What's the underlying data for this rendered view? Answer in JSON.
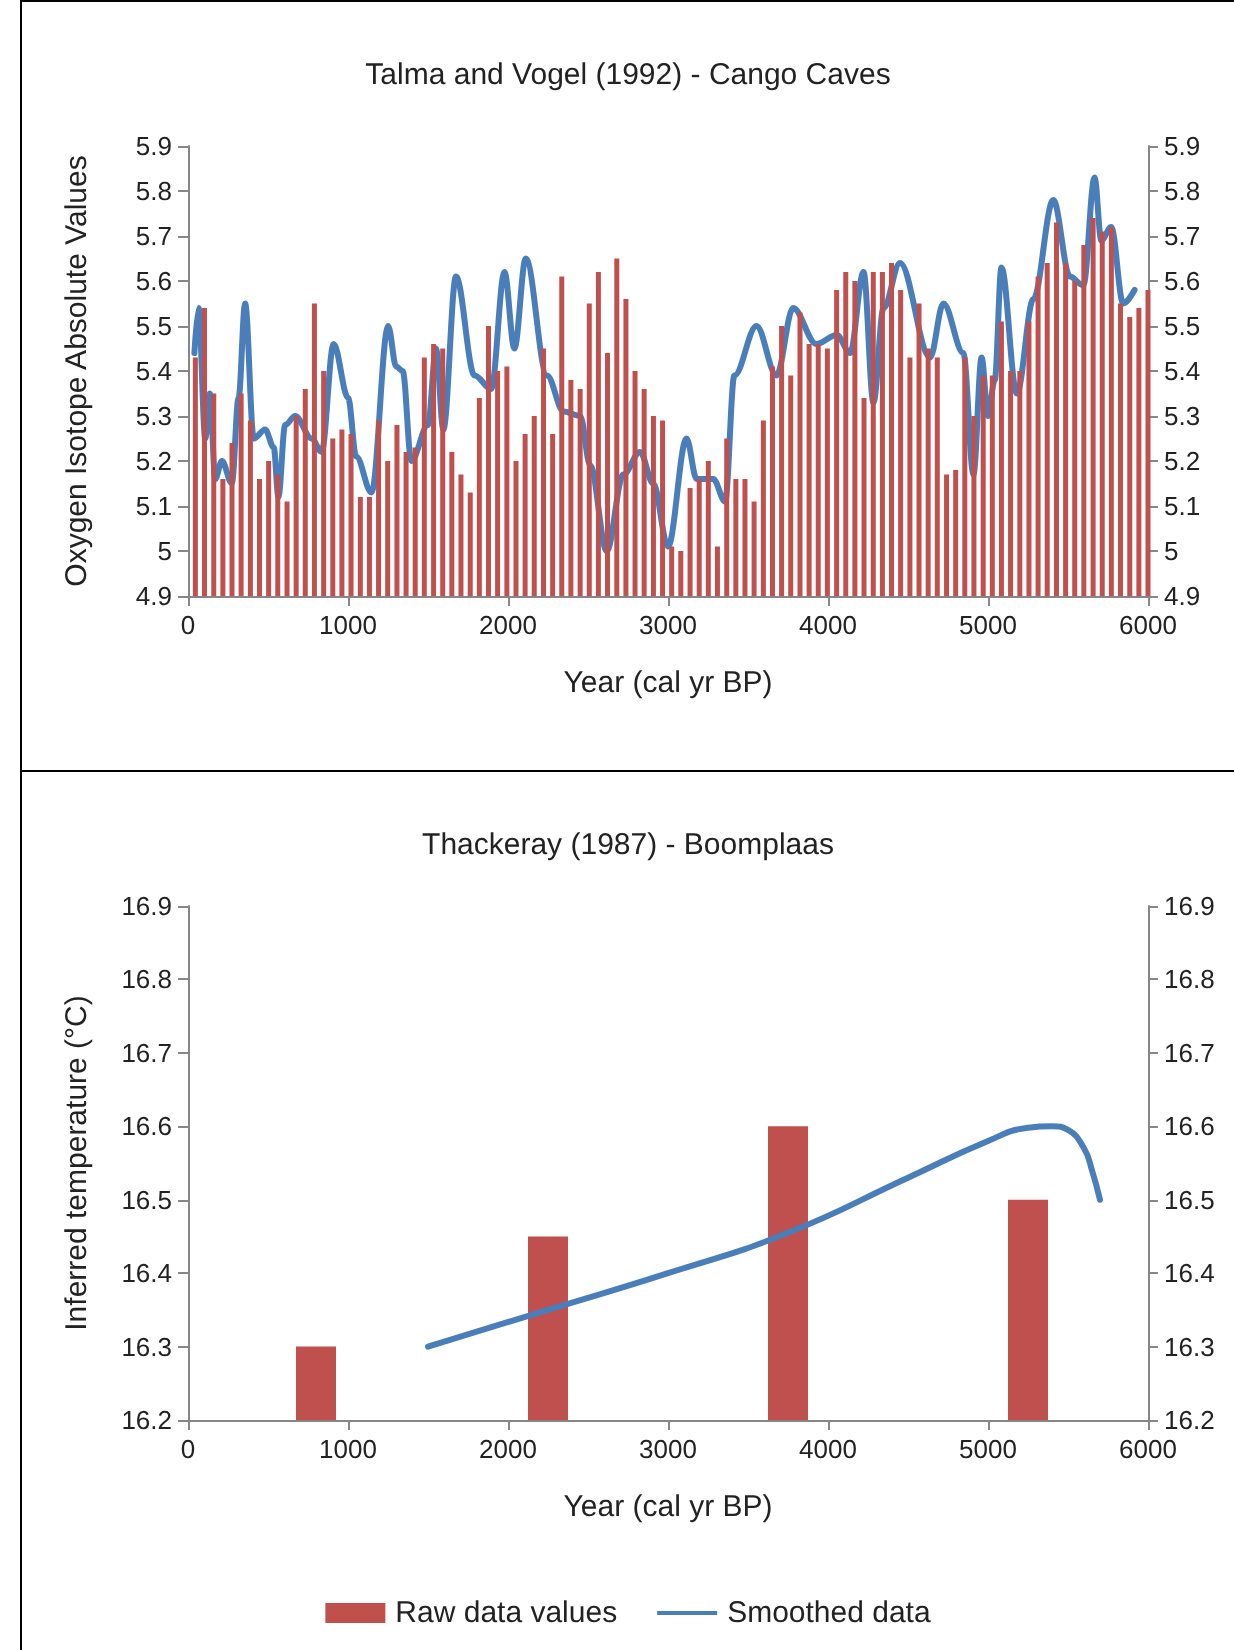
{
  "chart_data": [
    {
      "type": "bar",
      "title": "Talma and Vogel (1992) - Cango Caves",
      "xlabel": "Year (cal yr BP)",
      "ylabel": "Oxygen Isotope Absolute Values",
      "x": [
        46,
        103,
        161,
        218,
        275,
        332,
        390,
        447,
        504,
        561,
        619,
        676,
        733,
        790,
        848,
        905,
        962,
        1019,
        1077,
        1134,
        1191,
        1248,
        1306,
        1363,
        1420,
        1477,
        1535,
        1592,
        1649,
        1706,
        1764,
        1821,
        1878,
        1935,
        1993,
        2050,
        2107,
        2164,
        2222,
        2279,
        2336,
        2393,
        2451,
        2508,
        2565,
        2622,
        2680,
        2737,
        2794,
        2851,
        2909,
        2966,
        3023,
        3080,
        3138,
        3195,
        3252,
        3309,
        3367,
        3424,
        3481,
        3538,
        3596,
        3653,
        3710,
        3767,
        3825,
        3882,
        3939,
        3996,
        4054,
        4111,
        4168,
        4225,
        4283,
        4340,
        4397,
        4454,
        4512,
        4569,
        4626,
        4683,
        4741,
        4798,
        4855,
        4912,
        4970,
        5027,
        5084,
        5141,
        5199,
        5256,
        5313,
        5370,
        5428,
        5485,
        5542,
        5599,
        5657,
        5714,
        5771,
        5828,
        5886,
        5943,
        6000
      ],
      "series": [
        {
          "color": "#c0504d",
          "values": [
            5.43,
            5.54,
            5.35,
            5.16,
            5.24,
            5.35,
            5.29,
            5.16,
            5.2,
            5.17,
            5.11,
            5.3,
            5.36,
            5.55,
            5.4,
            5.25,
            5.27,
            5.26,
            5.12,
            5.12,
            5.29,
            5.2,
            5.28,
            5.22,
            5.23,
            5.43,
            5.46,
            5.45,
            5.22,
            5.17,
            5.13,
            5.34,
            5.5,
            5.4,
            5.41,
            5.2,
            5.26,
            5.3,
            5.45,
            5.26,
            5.61,
            5.38,
            5.36,
            5.55,
            5.62,
            5.44,
            5.65,
            5.56,
            5.4,
            5.36,
            5.3,
            5.29,
            5.01,
            5.0,
            5.14,
            5.16,
            5.2,
            5.01,
            5.25,
            5.16,
            5.16,
            5.11,
            5.29,
            5.41,
            5.5,
            5.39,
            5.53,
            5.46,
            5.46,
            5.45,
            5.58,
            5.62,
            5.6,
            5.34,
            5.62,
            5.62,
            5.64,
            5.58,
            5.43,
            5.55,
            5.45,
            5.43,
            5.17,
            5.18,
            5.43,
            5.3,
            5.39,
            5.39,
            5.51,
            5.4,
            5.4,
            5.51,
            5.61,
            5.64,
            5.73,
            5.64,
            5.6,
            5.68,
            5.74,
            5.71,
            5.72,
            5.55,
            5.52,
            5.54,
            5.58
          ]
        },
        {
          "type": "line",
          "color": "#4a7ebb",
          "x": [
            40,
            66,
            108,
            137,
            170,
            212,
            274,
            316,
            357,
            411,
            482,
            536,
            565,
            607,
            670,
            773,
            835,
            910,
            1001,
            1051,
            1147,
            1251,
            1301,
            1342,
            1396,
            1500,
            1550,
            1596,
            1675,
            1791,
            1895,
            1978,
            2040,
            2111,
            2244,
            2347,
            2451,
            2514,
            2617,
            2721,
            2825,
            2908,
            3000,
            3116,
            3179,
            3283,
            3357,
            3415,
            3553,
            3678,
            3782,
            3927,
            4055,
            4138,
            4222,
            4284,
            4347,
            4450,
            4638,
            4721,
            4846,
            4909,
            4960,
            5000,
            5042,
            5084,
            5180,
            5284,
            5408,
            5512,
            5596,
            5666,
            5708,
            5770,
            5845,
            5916
          ],
          "values": [
            5.44,
            5.54,
            5.25,
            5.35,
            5.16,
            5.2,
            5.15,
            5.34,
            5.55,
            5.25,
            5.27,
            5.23,
            5.12,
            5.28,
            5.3,
            5.25,
            5.22,
            5.46,
            5.34,
            5.21,
            5.13,
            5.5,
            5.41,
            5.4,
            5.2,
            5.28,
            5.45,
            5.27,
            5.61,
            5.39,
            5.36,
            5.62,
            5.45,
            5.65,
            5.39,
            5.31,
            5.3,
            5.19,
            5.0,
            5.17,
            5.22,
            5.15,
            5.01,
            5.25,
            5.16,
            5.16,
            5.11,
            5.39,
            5.5,
            5.39,
            5.54,
            5.46,
            5.48,
            5.44,
            5.62,
            5.33,
            5.54,
            5.64,
            5.43,
            5.55,
            5.44,
            5.17,
            5.43,
            5.3,
            5.38,
            5.63,
            5.35,
            5.56,
            5.78,
            5.61,
            5.59,
            5.83,
            5.69,
            5.72,
            5.55,
            5.58
          ]
        }
      ],
      "xlim": [
        0,
        6000
      ],
      "xticks": [
        0,
        1000,
        2000,
        3000,
        4000,
        5000,
        6000
      ],
      "ylim": [
        4.9,
        5.9
      ],
      "yticks": [
        4.9,
        5,
        5.1,
        5.2,
        5.3,
        5.4,
        5.5,
        5.6,
        5.7,
        5.8,
        5.9
      ],
      "y2lim": [
        4.9,
        5.9
      ],
      "y2ticks": [
        4.9,
        5,
        5.1,
        5.2,
        5.3,
        5.4,
        5.5,
        5.6,
        5.7,
        5.8,
        5.9
      ],
      "marker": "none"
    },
    {
      "type": "bar",
      "title": "Thackeray (1987) - Boomplaas",
      "xlabel": "Year (cal yr BP)",
      "ylabel": "Inferred temperature (°C)",
      "x": [
        800,
        2250,
        3750,
        5250
      ],
      "series": [
        {
          "name": "Raw data values",
          "color": "#c0504d",
          "values": [
            16.3,
            16.45,
            16.6,
            16.5
          ]
        },
        {
          "name": "Smoothed data",
          "type": "line",
          "color": "#4a7ebb",
          "x": [
            1500,
            2250,
            3000,
            3750,
            4500,
            5000,
            5250,
            5400,
            5500,
            5600,
            5650,
            5700
          ],
          "values": [
            16.3,
            16.35,
            16.4,
            16.455,
            16.53,
            16.58,
            16.598,
            16.6,
            16.595,
            16.57,
            16.54,
            16.5
          ]
        }
      ],
      "xlim": [
        0,
        6000
      ],
      "xticks": [
        0,
        1000,
        2000,
        3000,
        4000,
        5000,
        6000
      ],
      "ylim": [
        16.2,
        16.9
      ],
      "yticks": [
        16.2,
        16.3,
        16.4,
        16.5,
        16.6,
        16.7,
        16.8,
        16.9
      ],
      "y2lim": [
        16.2,
        16.9
      ],
      "y2ticks": [
        16.2,
        16.3,
        16.4,
        16.5,
        16.6,
        16.7,
        16.8,
        16.9
      ],
      "marker": "none",
      "legend": "bottom"
    }
  ]
}
